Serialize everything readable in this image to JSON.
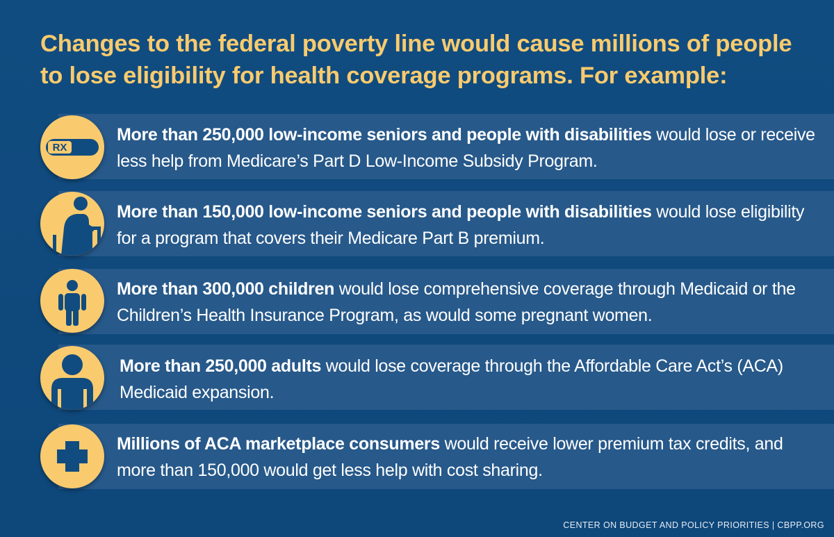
{
  "headline": "Changes to the federal poverty line would cause millions of people to lose eligibility for health coverage programs. For example:",
  "colors": {
    "background": "#0f4a7d",
    "band": "#27598a",
    "accent": "#f9cb6e",
    "icon_glyph": "#114c80",
    "text": "#ffffff"
  },
  "items": [
    {
      "icon": "rx-pill-icon",
      "icon_text": "RX",
      "bold": "More than 250,000 low-income seniors and people with disabilities",
      "rest": " would lose or receive less help from Medicare’s Part D Low-Income Subsidy Program."
    },
    {
      "icon": "elderly-walker-icon",
      "bold": "More than 150,000 low-income seniors and people with disabilities",
      "rest": " would lose eligibility for a program that covers their Medicare Part B premium."
    },
    {
      "icon": "child-icon",
      "bold": "More than 300,000 children",
      "rest": " would lose comprehensive coverage through Medicaid or the Children’s Health Insurance Program, as would some pregnant women."
    },
    {
      "icon": "adult-person-icon",
      "bold": "More than 250,000 adults",
      "rest": " would lose coverage through the Affordable Care Act’s (ACA) Medicaid expansion."
    },
    {
      "icon": "medical-cross-icon",
      "bold": "Millions of ACA marketplace consumers",
      "rest": " would receive lower premium tax credits, and more than 150,000 would get less help with cost sharing."
    }
  ],
  "footer": "CENTER ON BUDGET AND POLICY PRIORITIES | CBPP.ORG"
}
